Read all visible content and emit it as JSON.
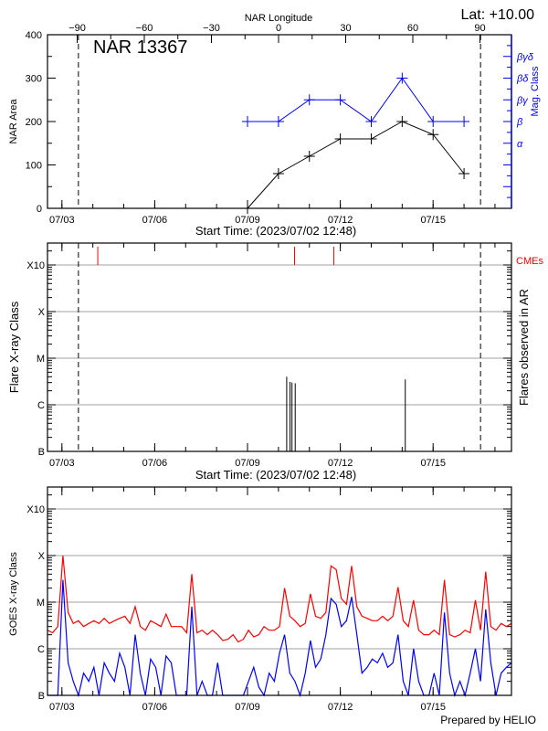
{
  "header": {
    "top_axis_label": "NAR Longitude",
    "latitude": "Lat: +10.00",
    "region_title": "NAR 13367"
  },
  "footer": "Prepared by HELIO",
  "colors": {
    "axis": "#000000",
    "mag_class": "#0000ff",
    "cme": "#ff0000",
    "grid": "#a0a0a0",
    "goes_long": "#ff0000",
    "goes_short": "#0000ff"
  },
  "chart_data": [
    {
      "type": "line",
      "panel": "nar",
      "xlabel": "Start Time: (2023/07/02 12:48)",
      "x_range": [
        "2023-07-02T12:48",
        "2023-07-17T12:48"
      ],
      "x_tick_labels": [
        {
          "t": "2023-07-03T00:00",
          "label": "07/03"
        },
        {
          "t": "2023-07-06T00:00",
          "label": "07/06"
        },
        {
          "t": "2023-07-09T00:00",
          "label": "07/09"
        },
        {
          "t": "2023-07-12T00:00",
          "label": "07/12"
        },
        {
          "t": "2023-07-15T00:00",
          "label": "07/15"
        }
      ],
      "top_axis": {
        "label": "NAR Longitude",
        "ticks": [
          -90,
          -60,
          -30,
          0,
          30,
          60,
          90
        ],
        "limb_lines_longitude": [
          -90,
          90
        ]
      },
      "limb_lines_time": [
        "2023-07-03T12:48",
        "2023-07-16T12:48"
      ],
      "ylabel": "NAR Area",
      "ylim": [
        0,
        400
      ],
      "y_ticks": [
        0,
        100,
        200,
        300,
        400
      ],
      "right_axis": {
        "label": "Mag. Class",
        "classes": [
          {
            "value": 150,
            "label": "α"
          },
          {
            "value": 200,
            "label": "β"
          },
          {
            "value": 250,
            "label": "βγ"
          },
          {
            "value": 300,
            "label": "βδ"
          },
          {
            "value": 350,
            "label": "βγδ"
          }
        ],
        "tick_values": [
          50,
          100,
          150,
          200,
          250,
          300,
          350
        ]
      },
      "x": [
        "2023-07-09T00:00",
        "2023-07-10T00:00",
        "2023-07-11T00:00",
        "2023-07-12T00:00",
        "2023-07-13T00:00",
        "2023-07-14T00:00",
        "2023-07-15T00:00",
        "2023-07-16T00:00"
      ],
      "series": [
        {
          "axis": "left",
          "color": "#000000",
          "values": [
            0,
            80,
            120,
            160,
            160,
            200,
            170,
            80
          ]
        },
        {
          "axis": "right",
          "color": "#0000ff",
          "values": [
            "β",
            "β",
            "βγ",
            "βγ",
            "β",
            "βδ",
            "β",
            "β"
          ]
        }
      ]
    },
    {
      "type": "bar",
      "panel": "flares",
      "xlabel": "Start Time: (2023/07/02 12:48)",
      "ylabel": "Flare X-ray Class",
      "right_label": "Flares observed in AR",
      "y_scale": "log",
      "y_class_ticks": [
        {
          "flux": 1e-07,
          "label": "B"
        },
        {
          "flux": 1e-06,
          "label": "C"
        },
        {
          "flux": 1e-05,
          "label": "M"
        },
        {
          "flux": 0.0001,
          "label": "X"
        },
        {
          "flux": 0.001,
          "label": "X10"
        }
      ],
      "grid": true,
      "flares": [
        {
          "t": "2023-07-10T06:24",
          "flux": 4e-06
        },
        {
          "t": "2023-07-10T09:00",
          "flux": 3.1e-06
        },
        {
          "t": "2023-07-10T10:30",
          "flux": 3e-06
        },
        {
          "t": "2023-07-10T13:00",
          "flux": 2.9e-06
        },
        {
          "t": "2023-07-14T02:24",
          "flux": 3.5e-06
        }
      ],
      "cme_label": "CMEs",
      "cmes": [
        "2023-07-04T03:50",
        "2023-07-10T12:30",
        "2023-07-11T19:00"
      ]
    },
    {
      "type": "line",
      "panel": "goes",
      "ylabel": "GOES X-ray Class",
      "y_scale": "log",
      "grid": true,
      "start": "2023-07-02T12:48",
      "sample_hours": 4,
      "series": [
        {
          "color": "#ff0000",
          "values": [
            2.5e-06,
            2.2e-06,
            3e-06,
            0.0001,
            6e-06,
            3.5e-06,
            4e-06,
            3e-06,
            3.5e-06,
            4e-06,
            3.5e-06,
            4.5e-06,
            3.5e-06,
            4e-06,
            4.5e-06,
            5e-06,
            3.5e-06,
            8e-06,
            3e-06,
            2.5e-06,
            4e-06,
            3.5e-06,
            3e-06,
            5.5e-06,
            3e-06,
            3e-06,
            3e-06,
            2.2e-06,
            4e-05,
            2.2e-06,
            2.5e-06,
            2e-06,
            2.5e-06,
            2e-06,
            1.5e-06,
            1.6e-06,
            2e-06,
            1.4e-06,
            1.6e-06,
            2.5e-06,
            1.8e-06,
            2e-06,
            3e-06,
            2.5e-06,
            2.5e-06,
            3e-06,
            2e-05,
            5e-06,
            4e-06,
            3e-06,
            3.5e-06,
            1.5e-05,
            5e-06,
            4.5e-06,
            6e-06,
            6e-05,
            5e-05,
            1.2e-05,
            9e-06,
            6e-05,
            8e-06,
            5e-06,
            4.5e-06,
            4e-06,
            4e-06,
            5e-06,
            4e-06,
            5e-06,
            2.1e-05,
            4e-06,
            3e-06,
            1.1e-05,
            2.5e-06,
            2e-06,
            2e-06,
            2.5e-06,
            2e-06,
            3e-05,
            2e-06,
            1.8e-06,
            2e-06,
            2.5e-06,
            2.2e-06,
            1.1e-05,
            2.5e-06,
            4.5e-05,
            3e-06,
            2.5e-06,
            3.5e-06,
            3e-06,
            3.5e-06
          ]
        },
        {
          "color": "#0000ff",
          "values": [
            5e-08,
            5e-08,
            5e-08,
            3e-05,
            5e-07,
            2e-07,
            5e-08,
            3e-07,
            2e-07,
            4e-07,
            5e-08,
            5e-07,
            3e-07,
            2e-07,
            8e-07,
            4e-07,
            5e-08,
            2e-06,
            3e-07,
            5e-08,
            6e-07,
            4e-07,
            5e-08,
            7e-07,
            5e-07,
            5e-08,
            5e-08,
            5e-08,
            8e-06,
            5e-08,
            2e-07,
            5e-08,
            5e-08,
            5e-07,
            5e-08,
            5e-08,
            5e-08,
            5e-08,
            5e-08,
            2e-07,
            4e-07,
            1.5e-07,
            5e-08,
            3e-07,
            2e-07,
            8e-07,
            2e-06,
            3e-07,
            2e-07,
            5e-08,
            3e-07,
            1.5e-06,
            4e-07,
            6e-07,
            2e-06,
            1.2e-05,
            9e-06,
            3e-06,
            4e-06,
            1.3e-05,
            2e-06,
            3e-07,
            4e-07,
            6e-07,
            5e-07,
            8e-07,
            4e-07,
            5e-07,
            2e-06,
            2e-07,
            5e-08,
            1e-06,
            2e-07,
            5e-08,
            5e-08,
            3e-07,
            5e-08,
            6e-06,
            3e-07,
            5e-08,
            2e-07,
            5e-08,
            3e-07,
            1e-06,
            2e-07,
            7e-06,
            5e-07,
            5e-08,
            3e-07,
            4e-07,
            5e-07
          ]
        }
      ]
    }
  ]
}
